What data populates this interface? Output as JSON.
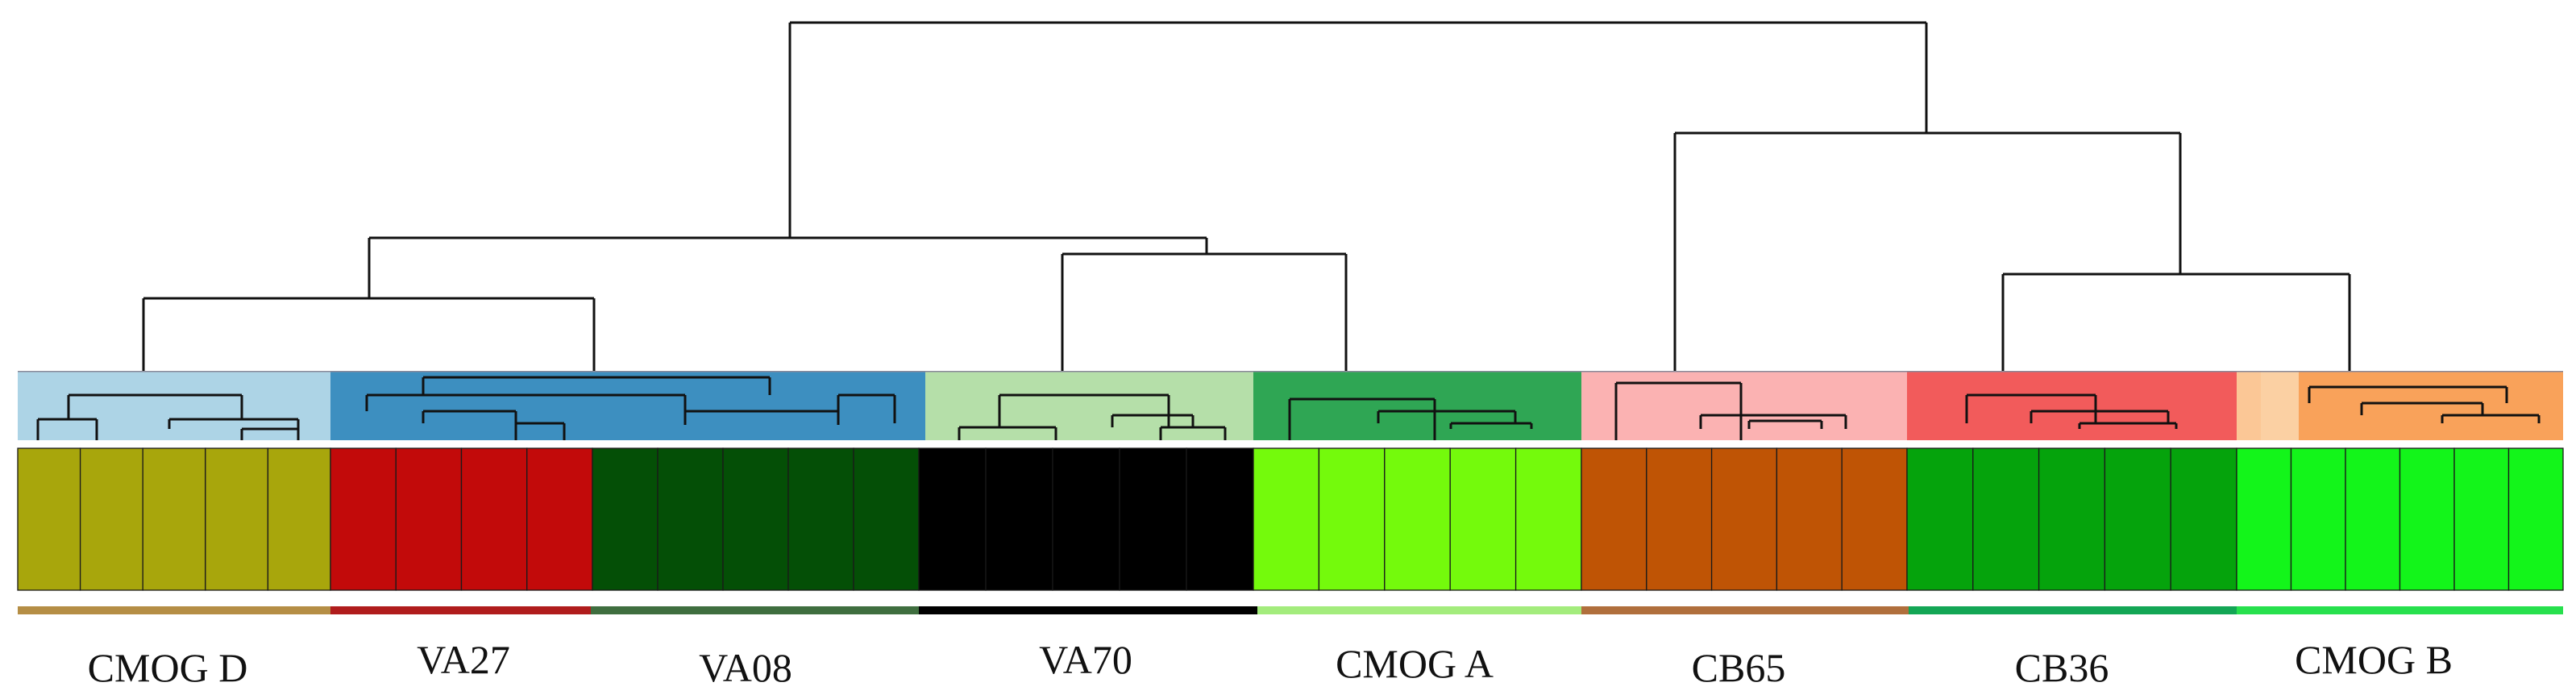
{
  "figure": {
    "type": "hierarchical-clustering-dendrogram",
    "n_leaves": 40,
    "groups": [
      {
        "label": "CMOG D",
        "members": 5,
        "subtree_color": "#add4e6",
        "strip_color": "#a8a60c",
        "bar_color": "#b58e45"
      },
      {
        "label": "VA27",
        "members": 4,
        "subtree_color": "#3d8fc0",
        "strip_color": "#c20a0a",
        "bar_color": "#b01c1c"
      },
      {
        "label": "VA08",
        "members": 5,
        "subtree_color": "#3d8fc0",
        "strip_color": "#044f06",
        "bar_color": "#3f6e3f"
      },
      {
        "label": "VA70",
        "members": 5,
        "subtree_color": "#b5dfa9",
        "strip_color": "#000000",
        "bar_color": "#000000"
      },
      {
        "label": "CMOG A",
        "members": 5,
        "subtree_color": "#2fa654",
        "strip_color": "#74fa0c",
        "bar_color": "#a3ec7c"
      },
      {
        "label": "CB65",
        "members": 5,
        "subtree_color": "#fbb2b2",
        "strip_color": "#bf5405",
        "bar_color": "#b06f3c"
      },
      {
        "label": "CB36",
        "members": 5,
        "subtree_color": "#f25b5b",
        "strip_color": "#05a30c",
        "bar_color": "#13a655"
      },
      {
        "label": "CMOG B",
        "members": 6,
        "subtree_color": "#f9a25a",
        "strip_color": "#13f51a",
        "bar_color": "#27e04d"
      }
    ]
  }
}
